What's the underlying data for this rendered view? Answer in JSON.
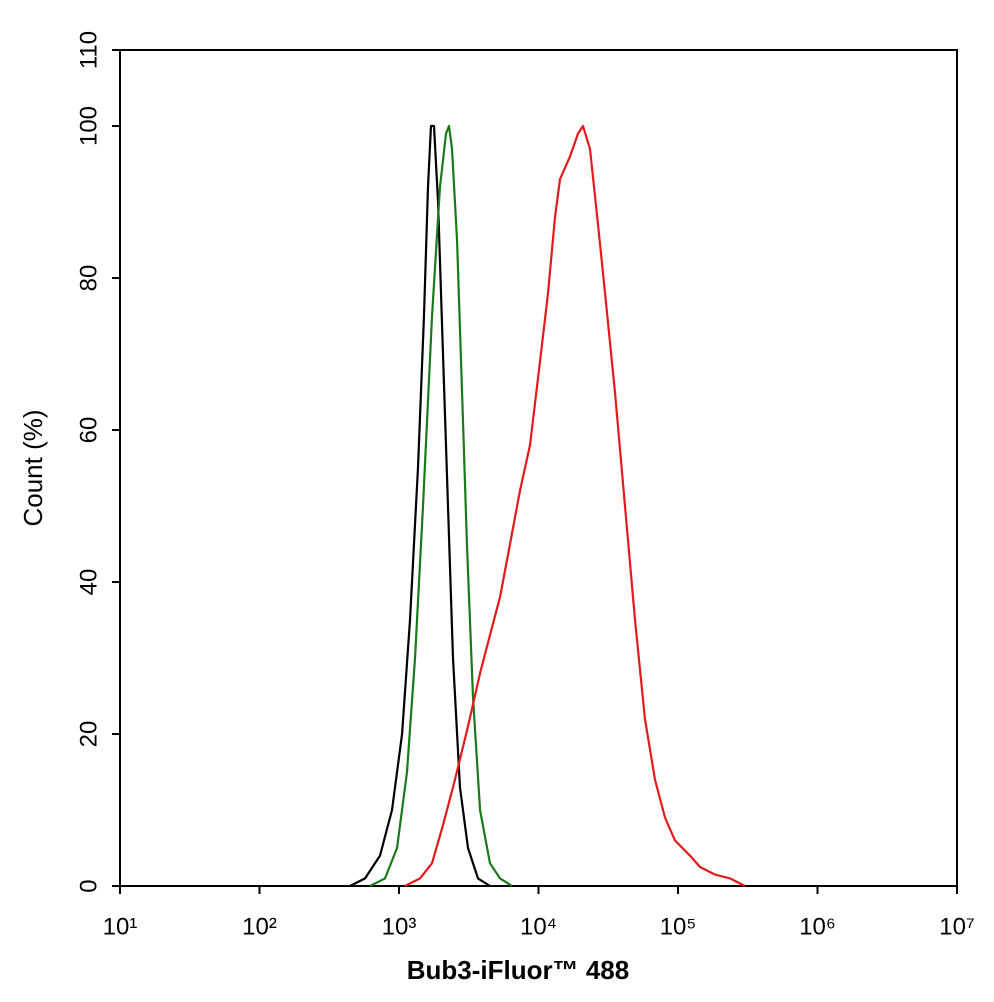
{
  "chart_data": {
    "type": "line",
    "xlabel": "Bub3-iFluor™ 488",
    "ylabel": "Count  (%)",
    "xscale": "log",
    "xlim": [
      10,
      10000000
    ],
    "xticks": [
      {
        "value": 10,
        "label": "10¹"
      },
      {
        "value": 100,
        "label": "10²"
      },
      {
        "value": 1000,
        "label": "10³"
      },
      {
        "value": 10000,
        "label": "10⁴"
      },
      {
        "value": 100000,
        "label": "10⁵"
      },
      {
        "value": 1000000,
        "label": "10⁶"
      },
      {
        "value": 10000000,
        "label": "10⁷"
      }
    ],
    "ylim": [
      0,
      110
    ],
    "yticks": [
      0,
      20,
      40,
      60,
      80,
      100,
      110
    ],
    "series": [
      {
        "color": "#000000",
        "x": [
          446,
          571,
          731,
          891,
          1052,
          1199,
          1368,
          1510,
          1614,
          1695,
          1782,
          1905,
          2067,
          2245,
          2438,
          2735,
          3124,
          3683,
          4487
        ],
        "values": [
          0,
          1,
          4,
          10,
          20,
          35,
          55,
          75,
          92,
          100,
          100,
          90,
          70,
          50,
          30,
          13,
          5,
          1,
          0
        ]
      },
      {
        "color": "#1a7a1a",
        "x": [
          620,
          794,
          968,
          1141,
          1303,
          1486,
          1725,
          1967,
          2173,
          2282,
          2399,
          2606,
          2831,
          3069,
          3389,
          3811,
          4487,
          5297,
          6457
        ],
        "values": [
          0,
          1,
          5,
          15,
          30,
          50,
          75,
          92,
          99,
          100,
          97,
          85,
          65,
          45,
          25,
          10,
          3,
          1,
          0
        ]
      },
      {
        "color": "#e41a1c",
        "x": [
          1104,
          1415,
          1725,
          2067,
          2519,
          3124,
          3811,
          4487,
          5297,
          6252,
          7362,
          8690,
          10250,
          11700,
          13130,
          14260,
          16830,
          19190,
          20840,
          23390,
          26720,
          29990,
          35320,
          41690,
          49200,
          57940,
          68390,
          80720,
          95070,
          121900,
          143900,
          184100,
          236000,
          302000
        ],
        "values": [
          0,
          1,
          3,
          8,
          14,
          21,
          28,
          33,
          38,
          45,
          52,
          58,
          69,
          78,
          88,
          93,
          96,
          99,
          100,
          97,
          87,
          78,
          65,
          50,
          35,
          22,
          14,
          9,
          6,
          4,
          2.5,
          1.5,
          1,
          0
        ]
      }
    ]
  }
}
